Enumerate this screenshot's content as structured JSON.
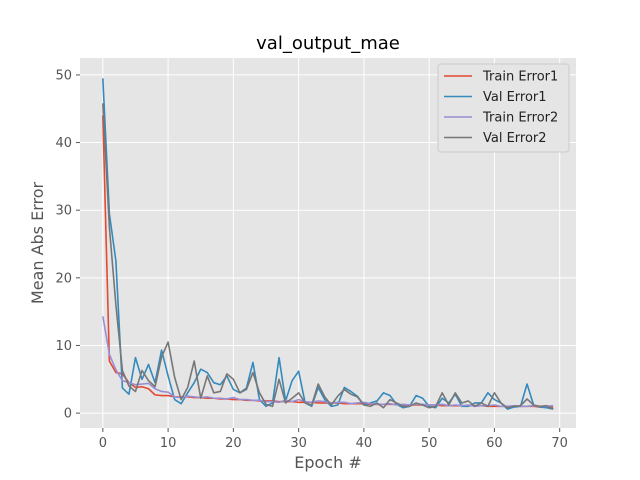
{
  "chart_data": {
    "type": "line",
    "title": "val_output_mae",
    "xlabel": "Epoch #",
    "ylabel": "Mean Abs Error",
    "xlim": [
      -3.5,
      72.5
    ],
    "ylim": [
      -2.2,
      52.5
    ],
    "xticks": [
      0,
      10,
      20,
      30,
      40,
      50,
      60,
      70
    ],
    "yticks": [
      0,
      10,
      20,
      30,
      40,
      50
    ],
    "grid": true,
    "legend_position": "top-right",
    "x": [
      0,
      1,
      2,
      3,
      4,
      5,
      6,
      7,
      8,
      9,
      10,
      11,
      12,
      13,
      14,
      15,
      16,
      17,
      18,
      19,
      20,
      21,
      22,
      23,
      24,
      25,
      26,
      27,
      28,
      29,
      30,
      31,
      32,
      33,
      34,
      35,
      36,
      37,
      38,
      39,
      40,
      41,
      42,
      43,
      44,
      45,
      46,
      47,
      48,
      49,
      50,
      51,
      52,
      53,
      54,
      55,
      56,
      57,
      58,
      59,
      60,
      61,
      62,
      63,
      64,
      65,
      66,
      67,
      68,
      69
    ],
    "series": [
      {
        "name": "Train Error1",
        "color": "#e24a33",
        "values": [
          44.0,
          7.7,
          6.0,
          5.8,
          4.5,
          3.8,
          3.9,
          3.6,
          2.7,
          2.6,
          2.6,
          2.4,
          2.4,
          2.4,
          2.3,
          2.3,
          2.2,
          2.2,
          2.1,
          2.1,
          2.0,
          2.0,
          1.9,
          1.9,
          1.8,
          1.8,
          1.8,
          1.7,
          1.7,
          1.7,
          1.6,
          1.6,
          1.6,
          1.5,
          1.5,
          1.5,
          1.5,
          1.4,
          1.4,
          1.4,
          1.4,
          1.3,
          1.3,
          1.3,
          1.3,
          1.3,
          1.2,
          1.2,
          1.2,
          1.2,
          1.2,
          1.2,
          1.1,
          1.1,
          1.1,
          1.1,
          1.1,
          1.1,
          1.1,
          1.0,
          1.0,
          1.0,
          1.0,
          1.0,
          1.0,
          1.0,
          1.0,
          0.9,
          0.9,
          0.9
        ]
      },
      {
        "name": "Val Error1",
        "color": "#348abd",
        "values": [
          49.5,
          29.5,
          22.5,
          3.7,
          2.8,
          8.2,
          5.0,
          7.2,
          4.5,
          9.3,
          5.5,
          2.0,
          1.4,
          3.0,
          4.5,
          6.5,
          6.0,
          4.5,
          4.2,
          5.5,
          3.5,
          3.0,
          3.7,
          7.5,
          2.0,
          1.0,
          1.5,
          8.2,
          1.8,
          4.8,
          6.2,
          1.5,
          1.0,
          3.8,
          2.0,
          1.0,
          1.2,
          3.8,
          3.2,
          2.5,
          1.2,
          1.5,
          1.8,
          3.0,
          2.6,
          1.3,
          0.8,
          1.0,
          2.6,
          2.2,
          1.0,
          0.8,
          2.2,
          1.5,
          2.8,
          1.0,
          1.0,
          1.5,
          1.5,
          3.0,
          2.0,
          1.5,
          0.6,
          0.9,
          1.0,
          4.3,
          1.2,
          0.9,
          0.8,
          0.6
        ]
      },
      {
        "name": "Train Error2",
        "color": "#988ed5",
        "values": [
          14.3,
          8.7,
          6.4,
          4.8,
          4.5,
          4.2,
          4.3,
          4.4,
          3.6,
          3.2,
          3.1,
          2.4,
          2.3,
          2.5,
          2.4,
          2.3,
          2.4,
          2.2,
          2.2,
          2.1,
          2.3,
          2.0,
          2.0,
          1.9,
          1.9,
          1.7,
          1.7,
          1.6,
          1.9,
          1.7,
          2.0,
          1.7,
          1.6,
          1.8,
          1.7,
          1.5,
          1.6,
          1.6,
          1.4,
          1.5,
          1.6,
          1.4,
          1.3,
          1.3,
          1.4,
          1.2,
          1.3,
          1.2,
          1.3,
          1.3,
          1.2,
          1.2,
          1.3,
          1.1,
          1.2,
          1.1,
          1.2,
          1.0,
          1.1,
          1.1,
          1.2,
          1.0,
          1.0,
          1.1,
          1.0,
          1.0,
          1.1,
          1.0,
          1.0,
          1.1
        ]
      },
      {
        "name": "Val Error2",
        "color": "#777777",
        "values": [
          45.8,
          27.5,
          16.0,
          6.3,
          4.0,
          3.2,
          6.3,
          4.8,
          3.9,
          8.3,
          10.5,
          5.3,
          2.0,
          3.8,
          7.7,
          2.2,
          5.5,
          3.0,
          3.2,
          5.8,
          5.0,
          3.0,
          3.5,
          6.0,
          3.0,
          1.3,
          1.0,
          5.0,
          1.5,
          2.2,
          3.0,
          1.5,
          1.2,
          4.3,
          2.4,
          1.2,
          2.5,
          3.5,
          2.8,
          2.4,
          1.2,
          1.0,
          1.5,
          0.8,
          2.0,
          1.5,
          1.0,
          1.0,
          1.5,
          1.2,
          0.8,
          1.0,
          3.0,
          1.2,
          3.0,
          1.5,
          1.8,
          1.0,
          1.5,
          1.0,
          3.0,
          1.5,
          0.8,
          1.0,
          1.1,
          2.1,
          1.2,
          1.0,
          1.1,
          0.6
        ]
      }
    ]
  }
}
